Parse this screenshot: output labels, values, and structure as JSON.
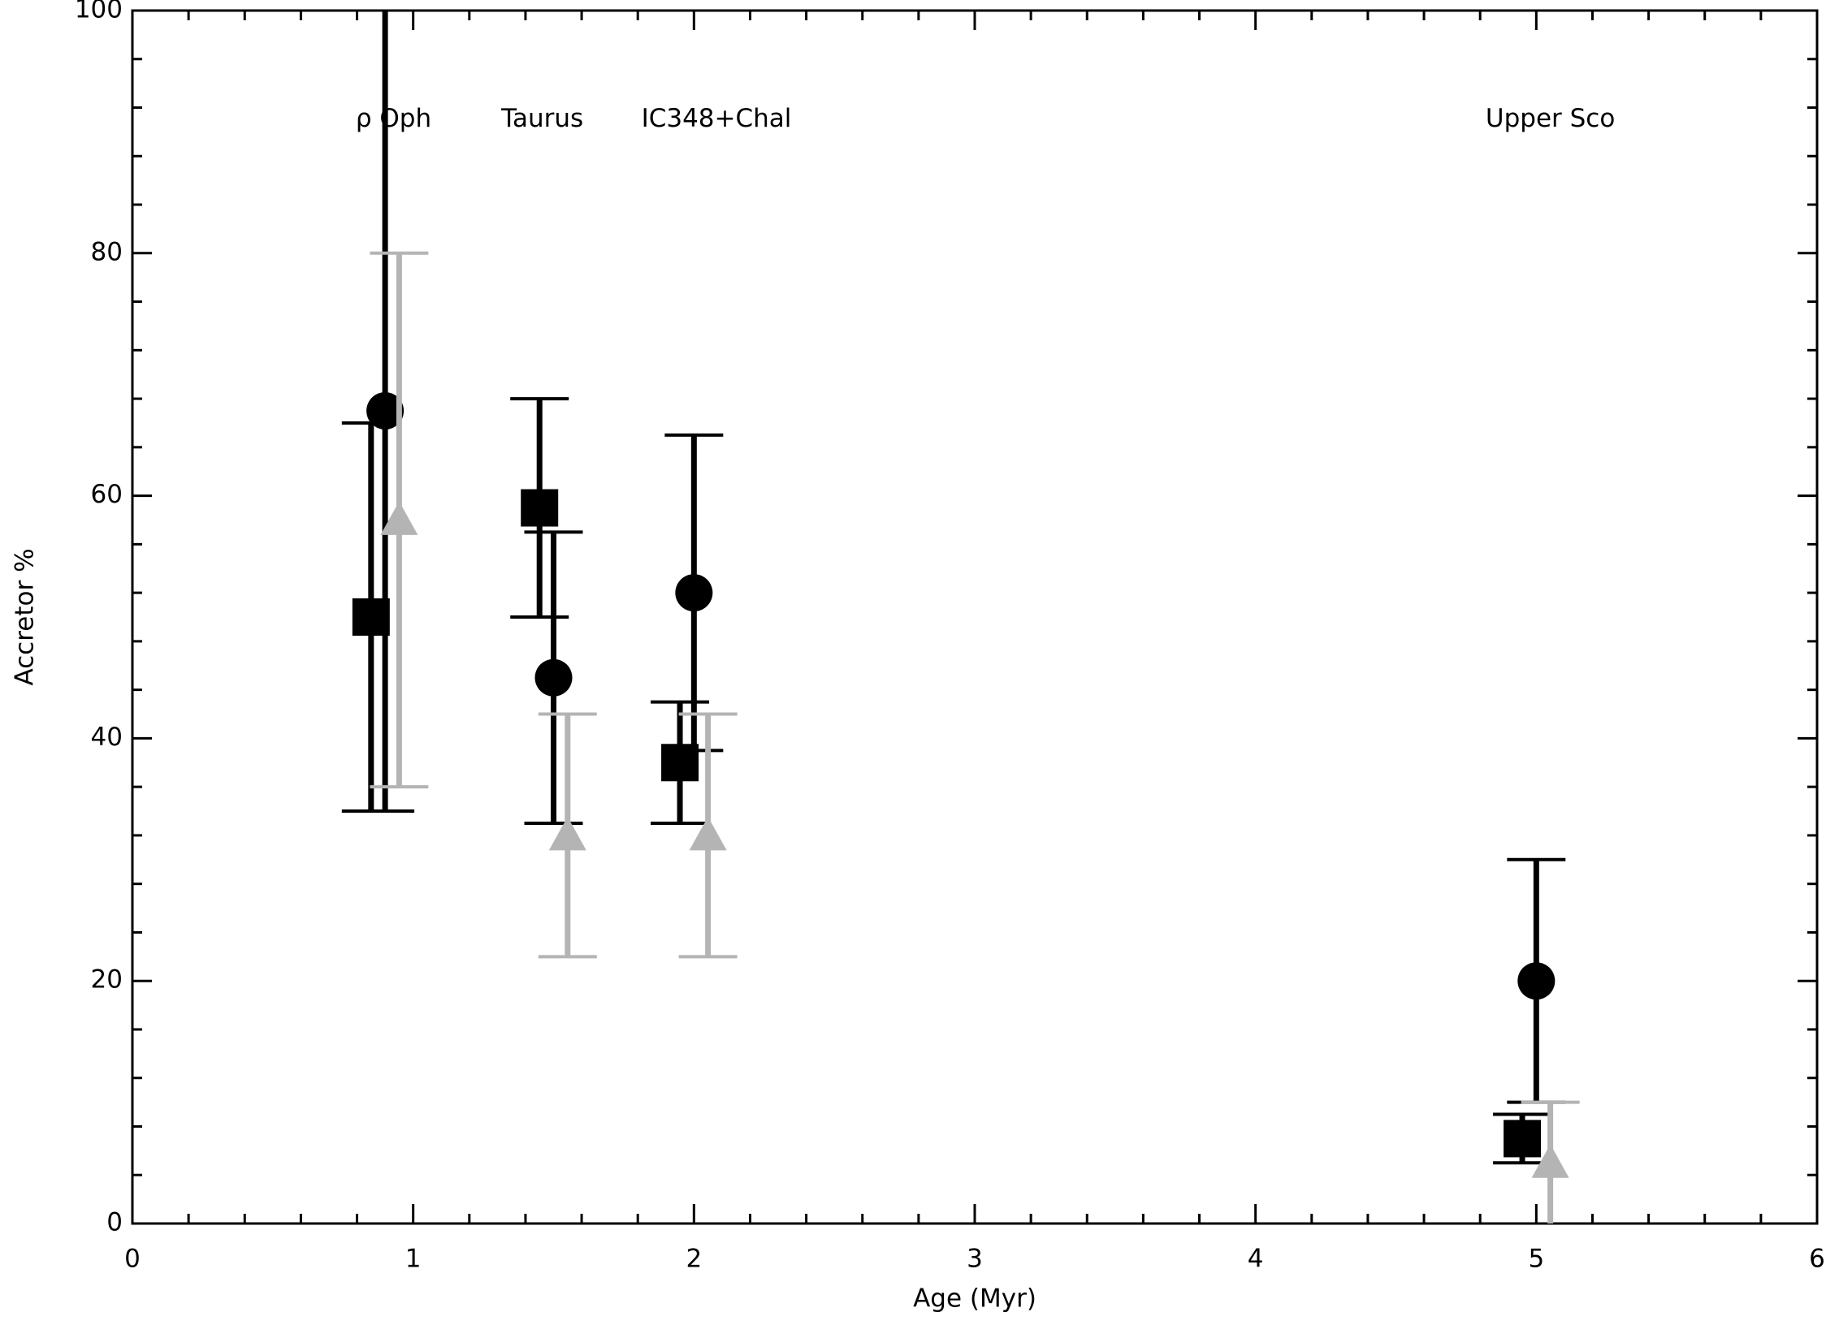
{
  "chart_data": {
    "type": "scatter",
    "xlabel": "Age (Myr)",
    "ylabel": "Accretor %",
    "xlim": [
      0,
      6
    ],
    "xticks": [
      0,
      1,
      2,
      3,
      4,
      5,
      6
    ],
    "ylim": [
      0,
      100
    ],
    "yticks": [
      0,
      20,
      40,
      60,
      80,
      100
    ],
    "minor_ticks": 4,
    "annotations": [
      {
        "text": "ρ Oph",
        "x": 0.93,
        "y": 91
      },
      {
        "text": "Taurus",
        "x": 1.46,
        "y": 91
      },
      {
        "text": "IC348+Chal",
        "x": 2.08,
        "y": 91
      },
      {
        "text": "Upper Sco",
        "x": 5.05,
        "y": 91
      }
    ],
    "series": [
      {
        "marker": "square",
        "color": "#000000",
        "x": [
          0.85,
          1.45,
          1.95,
          4.95
        ],
        "values": [
          50,
          59,
          38,
          7
        ],
        "low": [
          34,
          50,
          33,
          5
        ],
        "high": [
          66,
          68,
          43,
          9
        ]
      },
      {
        "marker": "circle",
        "color": "#000000",
        "x": [
          0.9,
          1.5,
          2.0,
          5.0
        ],
        "values": [
          67,
          45,
          52,
          20
        ],
        "low": [
          34,
          33,
          39,
          10
        ],
        "high": [
          100,
          57,
          65,
          30
        ]
      },
      {
        "marker": "triangle",
        "color": "#b4b4b4",
        "x": [
          0.95,
          1.55,
          2.05,
          5.05
        ],
        "values": [
          58,
          32,
          32,
          5
        ],
        "low": [
          36,
          22,
          22,
          0
        ],
        "high": [
          80,
          42,
          42,
          10
        ]
      }
    ]
  }
}
